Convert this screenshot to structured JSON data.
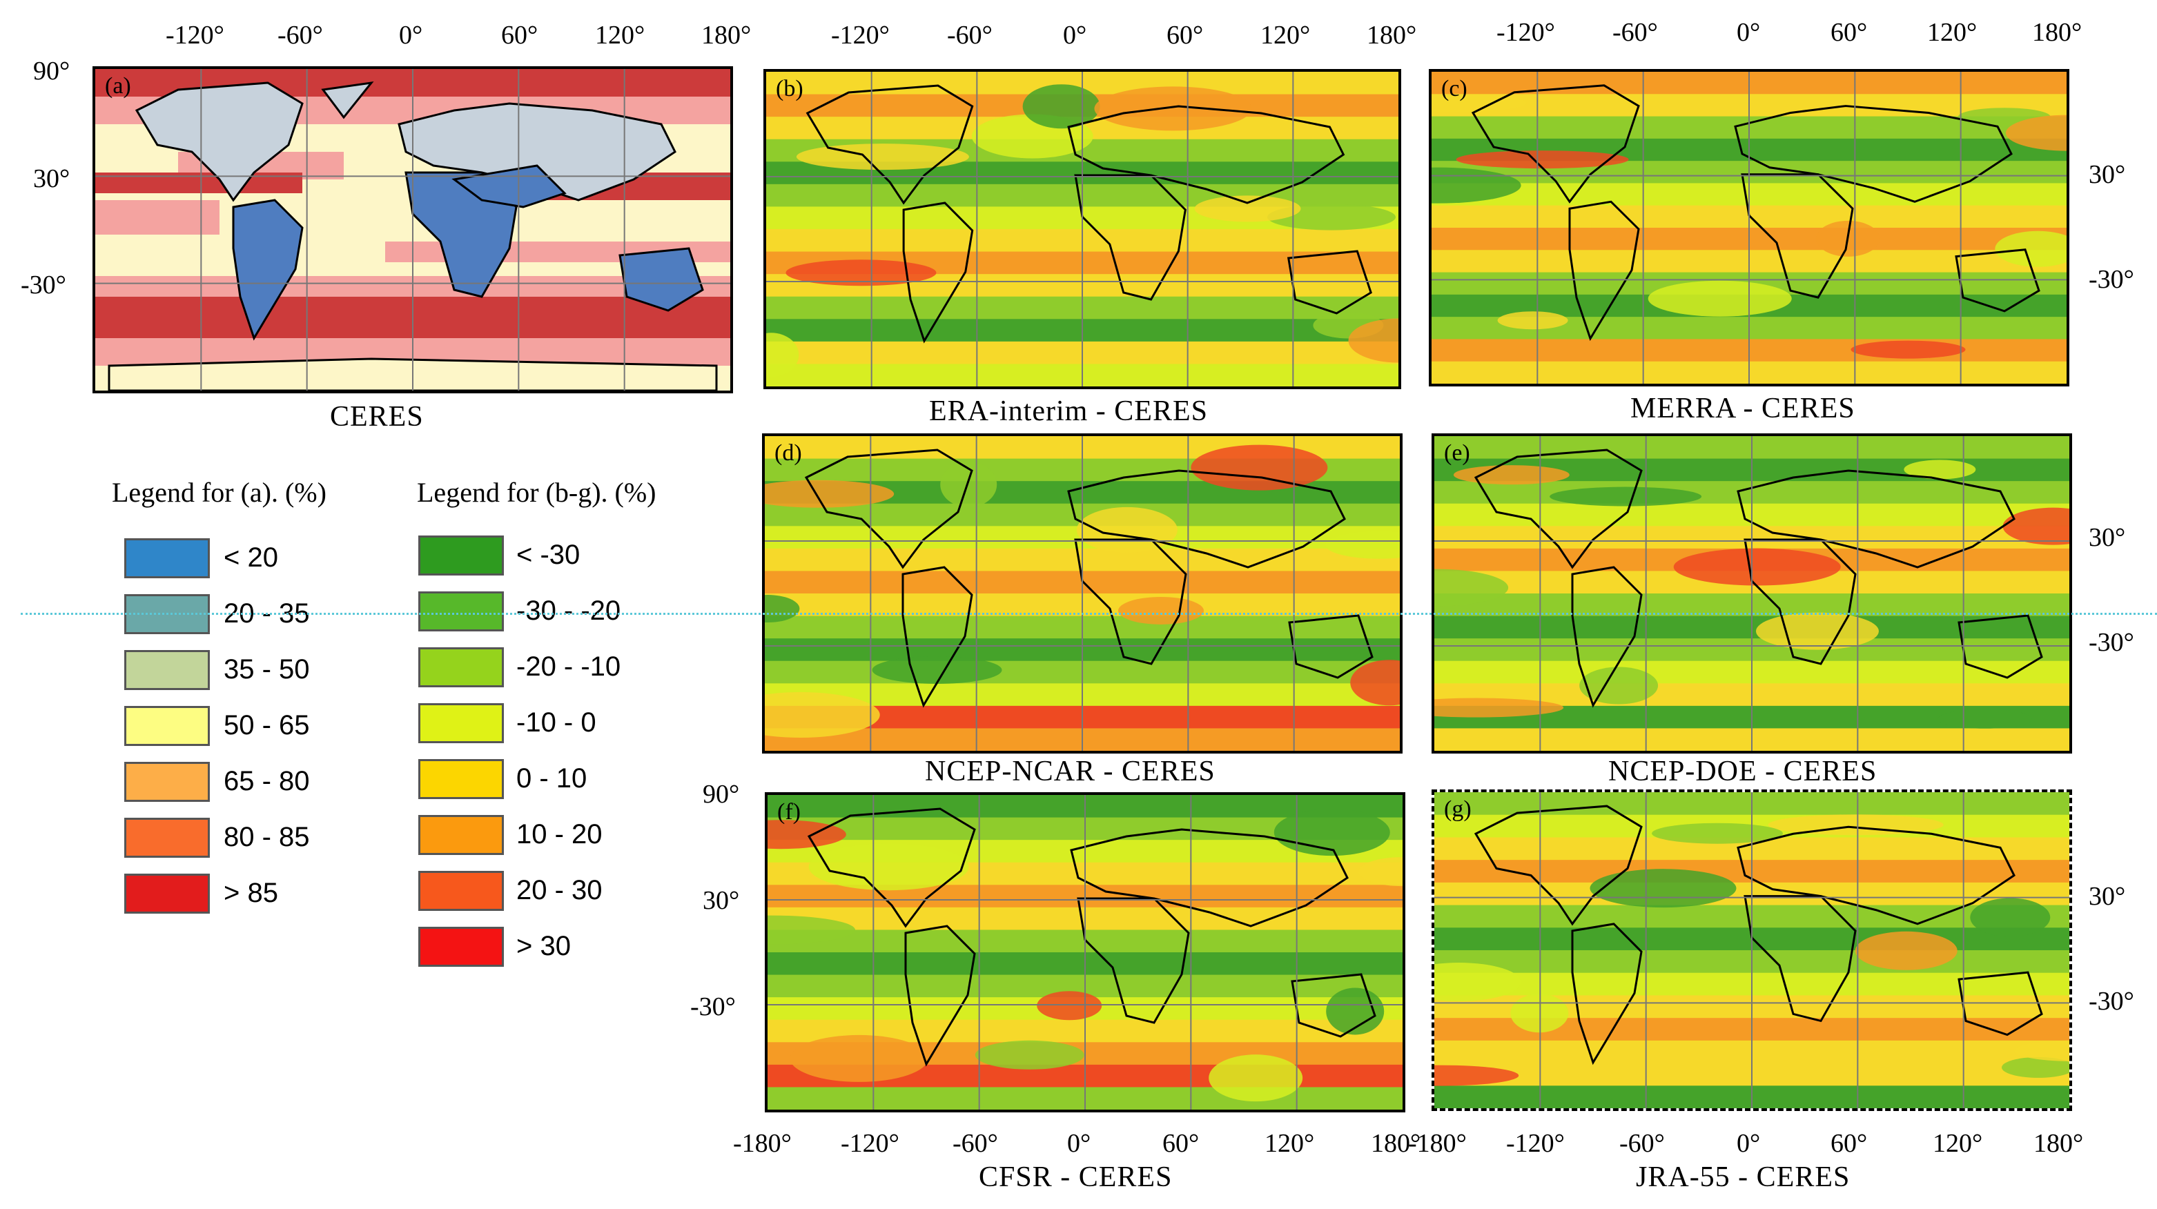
{
  "panels": {
    "a": {
      "letter": "(a)",
      "title": "CERES"
    },
    "b": {
      "letter": "(b)",
      "title": "ERA-interim - CERES"
    },
    "c": {
      "letter": "(c)",
      "title": "MERRA - CERES"
    },
    "d": {
      "letter": "(d)",
      "title": "NCEP-NCAR - CERES"
    },
    "e": {
      "letter": "(e)",
      "title": "NCEP-DOE - CERES"
    },
    "f": {
      "letter": "(f)",
      "title": "CFSR - CERES"
    },
    "g": {
      "letter": "(g)",
      "title": "JRA-55 - CERES"
    }
  },
  "lon_ticks_top": [
    "-120°",
    "-60°",
    "0°",
    "60°",
    "120°",
    "180°"
  ],
  "lon_ticks_bottom": [
    "-180°",
    "-120°",
    "-60°",
    "0°",
    "60°",
    "120°",
    "180°"
  ],
  "lat_ticks": [
    "90°",
    "30°",
    "-30°"
  ],
  "legend_a": {
    "title": "Legend for (a). (%)",
    "items": [
      {
        "label": "< 20",
        "color": "#2f86c9"
      },
      {
        "label": "20 - 35",
        "color": "#6aa8a8"
      },
      {
        "label": "35 - 50",
        "color": "#c2d59a"
      },
      {
        "label": "50 - 65",
        "color": "#fdfd82"
      },
      {
        "label": "65 - 80",
        "color": "#fdae48"
      },
      {
        "label": "80 - 85",
        "color": "#f96c2c"
      },
      {
        "label": "> 85",
        "color": "#e21c1c"
      }
    ]
  },
  "legend_bg": {
    "title": "Legend for (b-g). (%)",
    "items": [
      {
        "label": "< -30",
        "color": "#2e9b1f"
      },
      {
        "label": "-30 - -20",
        "color": "#57b82a"
      },
      {
        "label": "-20 - -10",
        "color": "#95d31c"
      },
      {
        "label": "-10 - 0",
        "color": "#dff216"
      },
      {
        "label": "0 - 10",
        "color": "#fcd600"
      },
      {
        "label": "10 - 20",
        "color": "#fb9a0e"
      },
      {
        "label": "20 - 30",
        "color": "#f7581c"
      },
      {
        "label": "> 30",
        "color": "#f41313"
      }
    ]
  },
  "colors": {
    "ceres_bands": [
      "#cc3b3b",
      "#f4a3a0",
      "#fdf6c8",
      "#c7d2dc",
      "#4f7dc0"
    ],
    "diff_bands": [
      "#45a32a",
      "#8fcc2c",
      "#d7ee22",
      "#f6d92a",
      "#f59b25",
      "#ee4a22"
    ],
    "grid": "#777777",
    "coast": "#000000"
  }
}
